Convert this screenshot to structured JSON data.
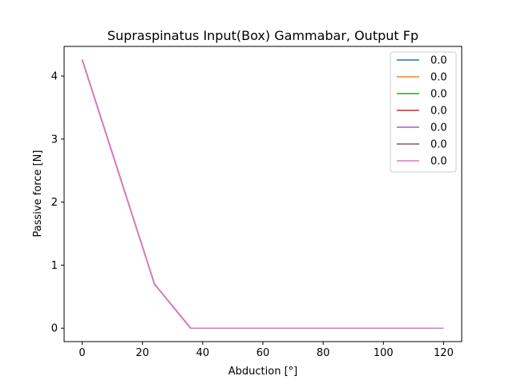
{
  "chart_data": {
    "type": "line",
    "title": "Supraspinatus Input(Box) Gammabar, Output Fp",
    "xlabel": "Abduction [°]",
    "ylabel": "Passive force [N]",
    "xlim": [
      -6,
      126
    ],
    "ylim": [
      -0.213,
      4.47
    ],
    "xticks": [
      0,
      20,
      40,
      60,
      80,
      100,
      120
    ],
    "yticks": [
      0,
      1,
      2,
      3,
      4
    ],
    "grid": false,
    "legend_position": "top-right",
    "x": [
      0,
      24,
      36,
      48,
      60,
      72,
      84,
      96,
      108,
      120
    ],
    "series": [
      {
        "name": "0.0",
        "color": "#1f77b4",
        "values": [
          4.26,
          0.7,
          0.0,
          0.0,
          0.0,
          0.0,
          0.0,
          0.0,
          0.0,
          0.0
        ]
      },
      {
        "name": "0.0",
        "color": "#ff7f0e",
        "values": [
          4.26,
          0.7,
          0.0,
          0.0,
          0.0,
          0.0,
          0.0,
          0.0,
          0.0,
          0.0
        ]
      },
      {
        "name": "0.0",
        "color": "#2ca02c",
        "values": [
          4.26,
          0.7,
          0.0,
          0.0,
          0.0,
          0.0,
          0.0,
          0.0,
          0.0,
          0.0
        ]
      },
      {
        "name": "0.0",
        "color": "#d62728",
        "values": [
          4.26,
          0.7,
          0.0,
          0.0,
          0.0,
          0.0,
          0.0,
          0.0,
          0.0,
          0.0
        ]
      },
      {
        "name": "0.0",
        "color": "#9467bd",
        "values": [
          4.26,
          0.7,
          0.0,
          0.0,
          0.0,
          0.0,
          0.0,
          0.0,
          0.0,
          0.0
        ]
      },
      {
        "name": "0.0",
        "color": "#8c564b",
        "values": [
          4.26,
          0.7,
          0.0,
          0.0,
          0.0,
          0.0,
          0.0,
          0.0,
          0.0,
          0.0
        ]
      },
      {
        "name": "0.0",
        "color": "#e377c2",
        "values": [
          4.26,
          0.7,
          0.0,
          0.0,
          0.0,
          0.0,
          0.0,
          0.0,
          0.0,
          0.0
        ]
      }
    ]
  }
}
